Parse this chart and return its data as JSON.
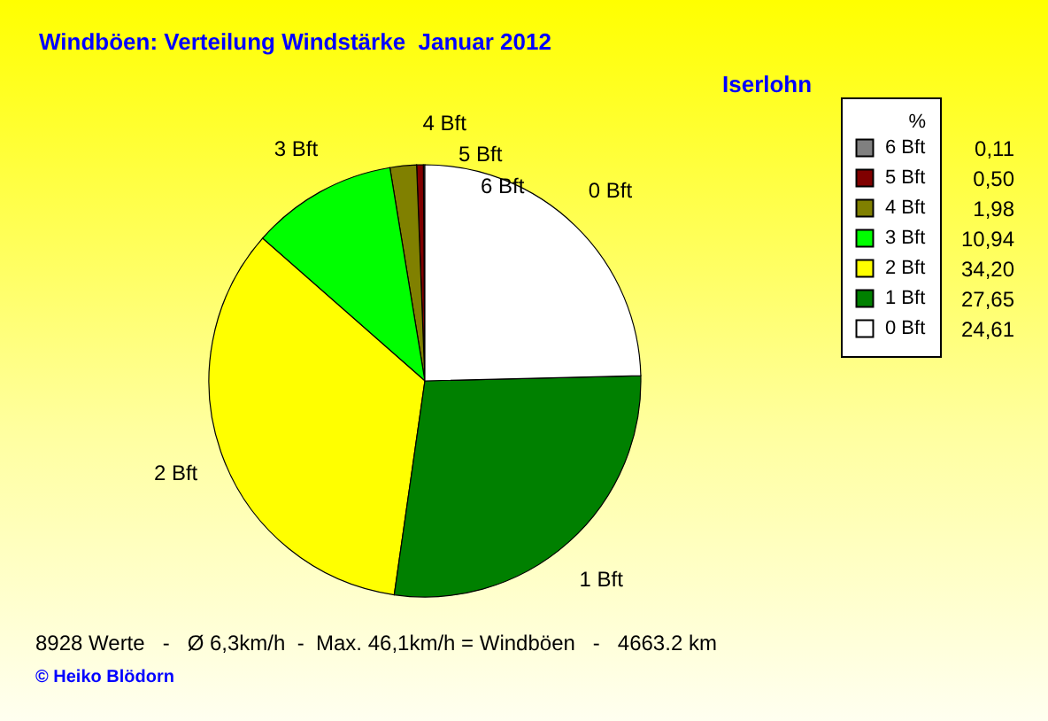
{
  "chart_data": {
    "type": "pie",
    "title": "Windböen: Verteilung Windstärke  Januar 2012",
    "legend_title": "%",
    "legend": "right",
    "categories": [
      "6 Bft",
      "5 Bft",
      "4 Bft",
      "3 Bft",
      "2 Bft",
      "1 Bft",
      "0 Bft"
    ],
    "values": [
      0.11,
      0.5,
      1.98,
      10.94,
      34.2,
      27.65,
      24.61
    ],
    "value_labels": [
      "0,11",
      "0,50",
      "1,98",
      "10,94",
      "34,20",
      "27,65",
      "24,61"
    ],
    "colors": [
      "#808080",
      "#800000",
      "#808000",
      "#00ff00",
      "#ffff00",
      "#008000",
      "#ffffff"
    ],
    "annotations": [
      "Iserlohn",
      "8928 Werte   -   Ø 6,3km/h  -  Max. 46,1km/h = Windböen   -   4663.2 km",
      "© Heiko Blödorn"
    ]
  }
}
